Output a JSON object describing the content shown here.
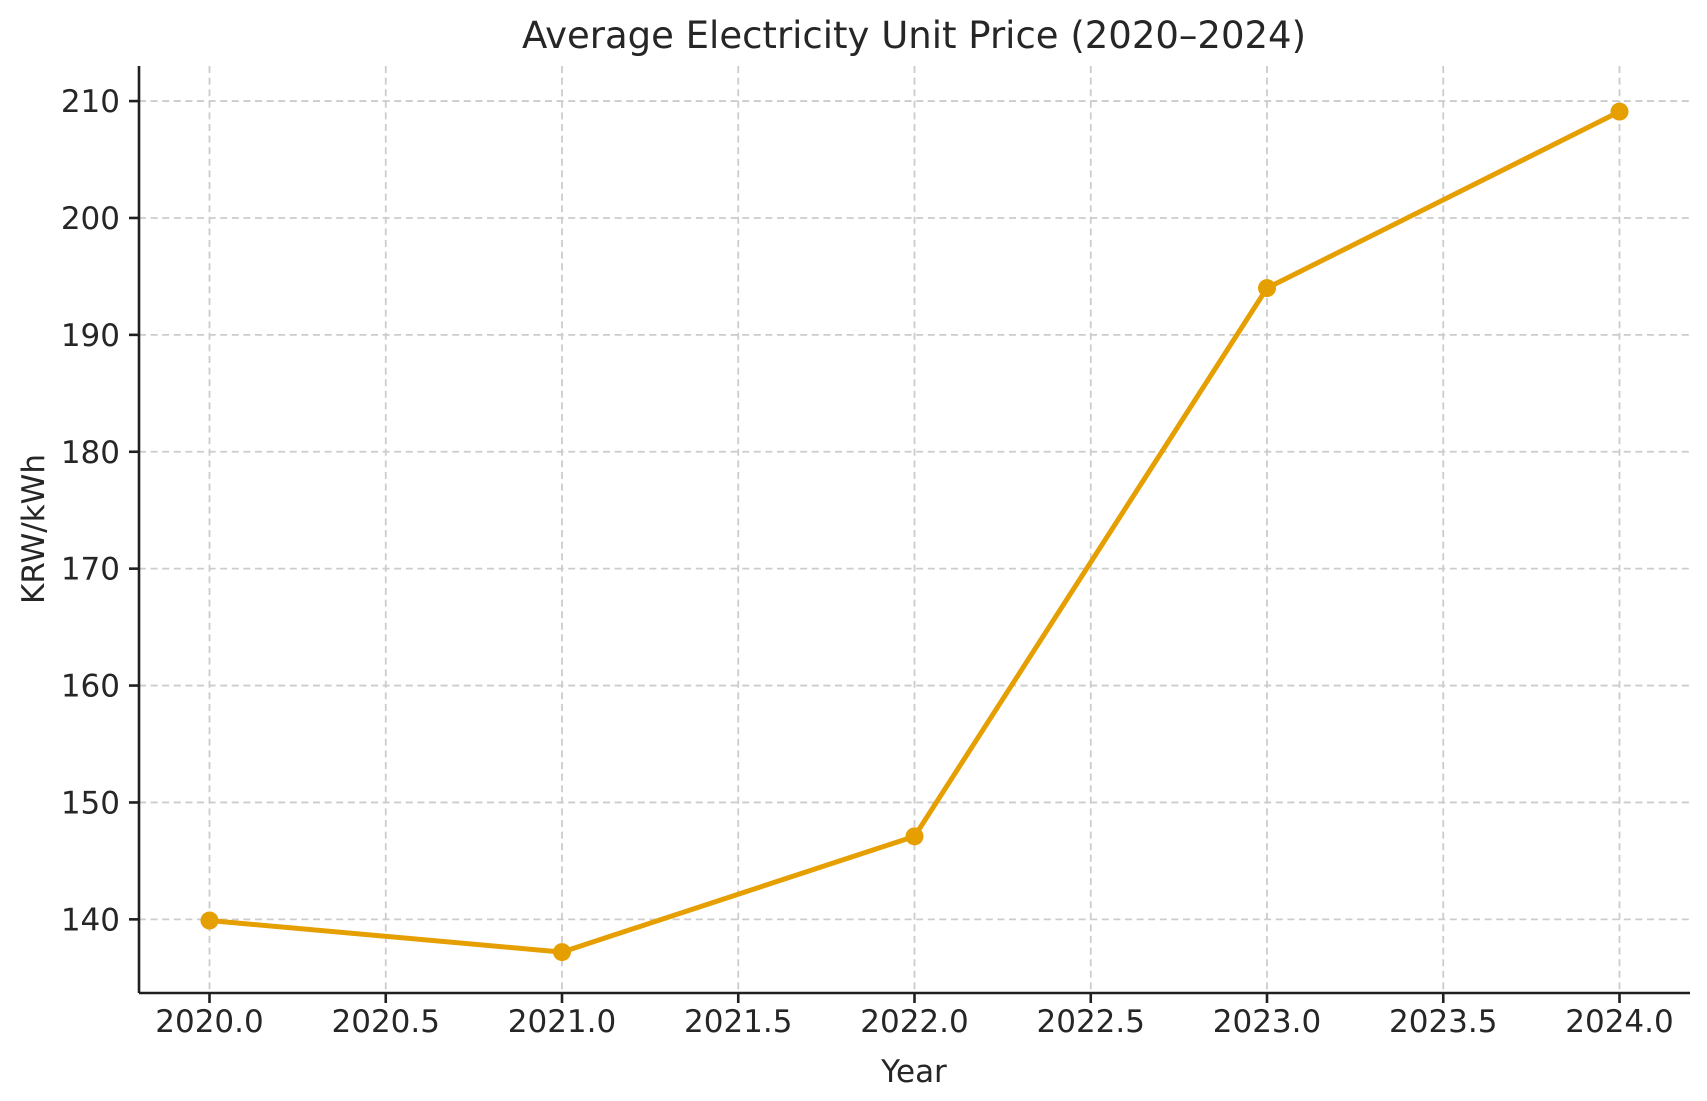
{
  "figure": {
    "background": "#ffffff"
  },
  "chart_data": {
    "type": "line",
    "title": "Average Electricity Unit Price (2020–2024)",
    "xlabel": "Year",
    "ylabel": "KRW/kWh",
    "x": [
      2020,
      2021,
      2022,
      2023,
      2024
    ],
    "values": [
      139.9,
      137.2,
      147.1,
      194.0,
      209.1
    ],
    "xlim": [
      2019.8,
      2024.2
    ],
    "ylim": [
      133.7,
      213.0
    ],
    "xticks": [
      2020.0,
      2020.5,
      2021.0,
      2021.5,
      2022.0,
      2022.5,
      2023.0,
      2023.5,
      2024.0
    ],
    "xtick_labels": [
      "2020.0",
      "2020.5",
      "2021.0",
      "2021.5",
      "2022.0",
      "2022.5",
      "2023.0",
      "2023.5",
      "2024.0"
    ],
    "yticks": [
      140,
      150,
      160,
      170,
      180,
      190,
      200,
      210
    ],
    "ytick_labels": [
      "140",
      "150",
      "160",
      "170",
      "180",
      "190",
      "200",
      "210"
    ],
    "grid": true,
    "grid_style": "dashed",
    "legend": false,
    "line_color": "#E69F00",
    "marker": "circle",
    "grid_color": "#cccccc",
    "spine_color": "#202020",
    "text_color": "#262626"
  }
}
